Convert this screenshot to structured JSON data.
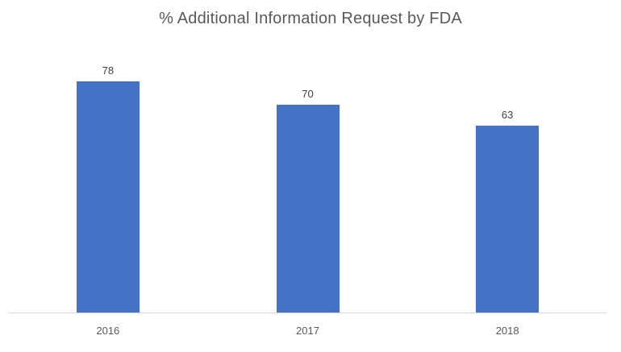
{
  "chart_data": {
    "type": "bar",
    "title": "% Additional Information Request by FDA",
    "categories": [
      "2016",
      "2017",
      "2018"
    ],
    "values": [
      78,
      70,
      63
    ],
    "data_labels_shown": true,
    "xlabel": "",
    "ylabel": "",
    "ylim": [
      0,
      90
    ],
    "grid": false,
    "legend": false,
    "y_axis_visible": false,
    "colors": {
      "bar": "#4472C4",
      "axis_line": "#D9D9D9",
      "title_text": "#595959",
      "value_label_text": "#404040",
      "category_label_text": "#595959",
      "background": "#FFFFFF"
    }
  }
}
